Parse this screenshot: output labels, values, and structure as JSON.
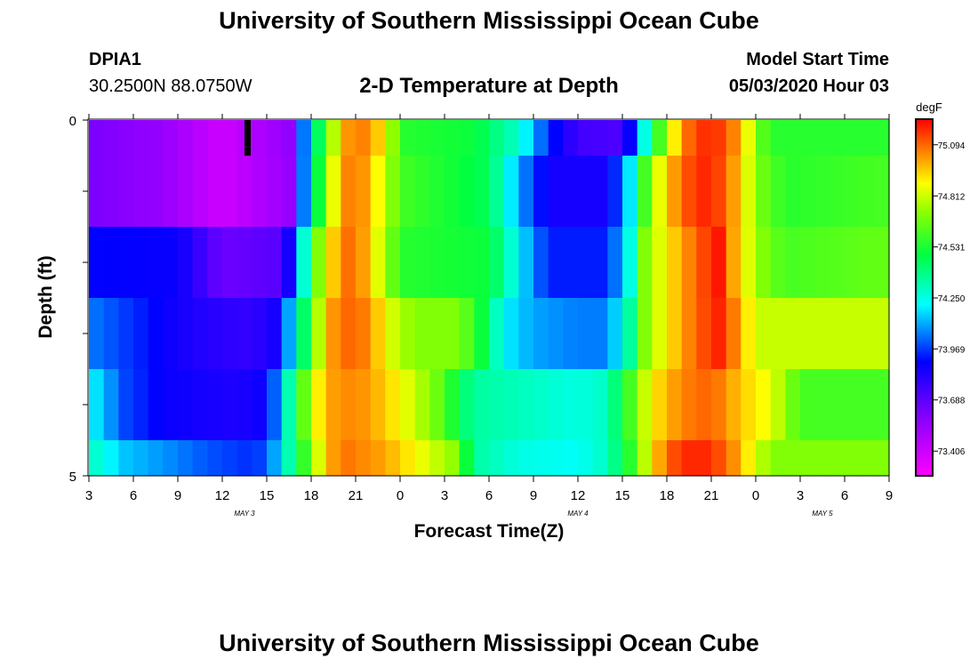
{
  "page": {
    "title_top": "University of Southern Mississippi Ocean Cube",
    "title_bottom": "University of Southern Mississippi Ocean Cube",
    "station_id": "DPIA1",
    "station_coords": "30.2500N 88.0750W",
    "plot_title": "2-D Temperature at Depth",
    "model_start_label": "Model Start Time",
    "model_start_value": "05/03/2020 Hour 03"
  },
  "chart_data": {
    "type": "heatmap",
    "title": "2-D Temperature at Depth",
    "xlabel": "Forecast Time(Z)",
    "ylabel": "Depth (ft)",
    "x_ticks": [
      "3",
      "6",
      "9",
      "12",
      "15",
      "18",
      "21",
      "0",
      "3",
      "6",
      "9",
      "12",
      "15",
      "18",
      "21",
      "0",
      "3",
      "6",
      "9"
    ],
    "date_labels": [
      {
        "label": "MAY 3",
        "hour_index": 10.5
      },
      {
        "label": "MAY 4",
        "hour_index": 33
      },
      {
        "label": "MAY 5",
        "hour_index": 49.5
      }
    ],
    "y_ticks": [
      "0",
      "5"
    ],
    "ylim": [
      0,
      5
    ],
    "hours": 54,
    "colorbar": {
      "unit": "degF",
      "min": 73.27,
      "max": 75.23,
      "labels": [
        "75.094",
        "74.812",
        "74.531",
        "74.250",
        "73.969",
        "73.688",
        "73.406"
      ]
    },
    "layers": [
      {
        "depth_range": [
          0.0,
          0.5
        ],
        "anchors": [
          [
            0,
            73.62
          ],
          [
            5,
            73.55
          ],
          [
            9,
            73.4
          ],
          [
            14,
            73.58
          ],
          [
            14.4,
            74.0
          ],
          [
            15.2,
            74.35
          ],
          [
            16,
            74.6
          ],
          [
            17,
            74.95
          ],
          [
            18,
            75.1
          ],
          [
            20,
            74.9
          ],
          [
            21,
            74.55
          ],
          [
            26,
            74.5
          ],
          [
            29,
            74.28
          ],
          [
            31,
            73.95
          ],
          [
            33,
            73.75
          ],
          [
            36,
            73.72
          ],
          [
            37,
            74.05
          ],
          [
            38,
            74.45
          ],
          [
            39,
            74.75
          ],
          [
            40,
            75.05
          ],
          [
            42,
            75.2
          ],
          [
            44,
            75.0
          ],
          [
            45,
            74.7
          ],
          [
            46,
            74.55
          ],
          [
            53,
            74.55
          ]
        ]
      },
      {
        "depth_range": [
          0.5,
          1.5
        ],
        "anchors": [
          [
            0,
            73.62
          ],
          [
            5,
            73.55
          ],
          [
            9,
            73.4
          ],
          [
            13.5,
            73.55
          ],
          [
            14,
            73.8
          ],
          [
            15,
            74.3
          ],
          [
            16,
            74.7
          ],
          [
            17,
            75.0
          ],
          [
            18,
            75.1
          ],
          [
            20,
            74.8
          ],
          [
            21,
            74.6
          ],
          [
            27,
            74.45
          ],
          [
            29,
            74.1
          ],
          [
            31,
            73.85
          ],
          [
            35,
            73.85
          ],
          [
            36.3,
            74.1
          ],
          [
            37.5,
            74.6
          ],
          [
            38.5,
            74.85
          ],
          [
            40,
            75.1
          ],
          [
            42,
            75.2
          ],
          [
            44,
            74.95
          ],
          [
            45,
            74.7
          ],
          [
            47,
            74.55
          ],
          [
            53,
            74.6
          ]
        ]
      },
      {
        "depth_range": [
          1.5,
          2.5
        ],
        "anchors": [
          [
            0,
            73.9
          ],
          [
            6,
            73.88
          ],
          [
            9,
            73.65
          ],
          [
            13,
            73.7
          ],
          [
            14,
            74.0
          ],
          [
            15,
            74.55
          ],
          [
            16,
            74.85
          ],
          [
            17,
            75.05
          ],
          [
            18,
            75.1
          ],
          [
            20,
            74.75
          ],
          [
            21,
            74.55
          ],
          [
            27,
            74.5
          ],
          [
            29,
            74.2
          ],
          [
            31,
            73.93
          ],
          [
            35,
            73.93
          ],
          [
            36.5,
            74.25
          ],
          [
            37.5,
            74.7
          ],
          [
            39,
            74.9
          ],
          [
            41,
            75.1
          ],
          [
            42.5,
            75.2
          ],
          [
            44,
            74.9
          ],
          [
            45.5,
            74.7
          ],
          [
            47,
            74.6
          ],
          [
            53,
            74.65
          ]
        ]
      },
      {
        "depth_range": [
          2.5,
          3.5
        ],
        "anchors": [
          [
            0,
            74.05
          ],
          [
            3,
            73.95
          ],
          [
            6,
            73.85
          ],
          [
            9,
            73.8
          ],
          [
            11,
            73.78
          ],
          [
            12.5,
            73.85
          ],
          [
            13.5,
            74.1
          ],
          [
            15,
            74.6
          ],
          [
            16,
            74.95
          ],
          [
            17,
            75.1
          ],
          [
            19,
            75.05
          ],
          [
            20,
            74.85
          ],
          [
            22,
            74.7
          ],
          [
            25,
            74.7
          ],
          [
            26.5,
            74.5
          ],
          [
            28,
            74.2
          ],
          [
            30,
            74.1
          ],
          [
            33,
            74.05
          ],
          [
            35,
            74.05
          ],
          [
            36.5,
            74.35
          ],
          [
            37.5,
            74.7
          ],
          [
            39,
            74.9
          ],
          [
            41,
            75.1
          ],
          [
            42.5,
            75.18
          ],
          [
            44,
            75.0
          ],
          [
            45,
            74.8
          ],
          [
            53,
            74.8
          ]
        ]
      },
      {
        "depth_range": [
          3.5,
          4.5
        ],
        "anchors": [
          [
            0,
            74.2
          ],
          [
            1,
            74.15
          ],
          [
            2,
            74.0
          ],
          [
            5,
            73.88
          ],
          [
            8,
            73.85
          ],
          [
            10,
            73.83
          ],
          [
            12,
            73.88
          ],
          [
            13,
            74.15
          ],
          [
            14,
            74.5
          ],
          [
            15,
            74.8
          ],
          [
            16,
            75.0
          ],
          [
            18,
            75.05
          ],
          [
            20,
            74.95
          ],
          [
            22,
            74.8
          ],
          [
            24,
            74.62
          ],
          [
            25,
            74.45
          ],
          [
            26,
            74.35
          ],
          [
            31,
            74.28
          ],
          [
            33,
            74.25
          ],
          [
            35,
            74.3
          ],
          [
            36.5,
            74.6
          ],
          [
            38,
            74.9
          ],
          [
            40,
            75.05
          ],
          [
            42,
            75.1
          ],
          [
            44,
            74.95
          ],
          [
            46,
            74.85
          ],
          [
            48,
            74.6
          ],
          [
            53,
            74.6
          ]
        ]
      },
      {
        "depth_range": [
          4.5,
          5.0
        ],
        "anchors": [
          [
            0,
            74.3
          ],
          [
            1,
            74.25
          ],
          [
            2,
            74.15
          ],
          [
            5,
            74.08
          ],
          [
            8,
            74.0
          ],
          [
            11,
            73.95
          ],
          [
            12,
            74.0
          ],
          [
            13,
            74.2
          ],
          [
            14,
            74.45
          ],
          [
            15,
            74.7
          ],
          [
            16,
            74.95
          ],
          [
            17,
            75.08
          ],
          [
            20,
            75.0
          ],
          [
            22,
            74.88
          ],
          [
            25,
            74.7
          ],
          [
            25.5,
            74.5
          ],
          [
            26,
            74.35
          ],
          [
            29,
            74.25
          ],
          [
            33,
            74.22
          ],
          [
            35,
            74.3
          ],
          [
            36.5,
            74.55
          ],
          [
            38,
            74.9
          ],
          [
            39,
            75.1
          ],
          [
            41,
            75.2
          ],
          [
            43,
            75.1
          ],
          [
            44.5,
            74.9
          ],
          [
            46,
            74.7
          ],
          [
            53,
            74.7
          ]
        ]
      }
    ],
    "marker": {
      "hour": 10.5,
      "depth_range": [
        0,
        0.5
      ],
      "color": "#000000"
    },
    "grid": false,
    "legend": "colorbar-right"
  }
}
